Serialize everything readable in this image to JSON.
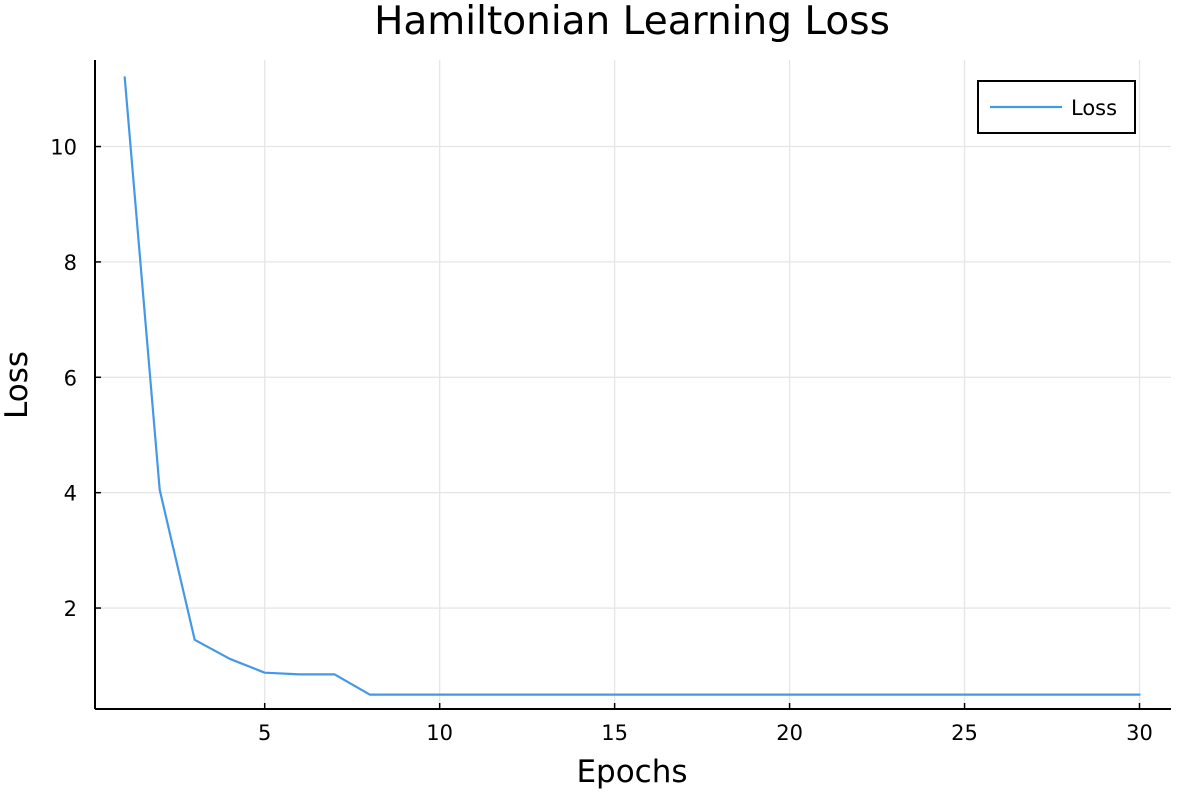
{
  "chart_data": {
    "type": "line",
    "title": "Hamiltonian Learning Loss",
    "xlabel": "Epochs",
    "ylabel": "Loss",
    "xlim": [
      0.15,
      30.9
    ],
    "ylim": [
      0.25,
      11.5
    ],
    "xticks": [
      5,
      10,
      15,
      20,
      25,
      30
    ],
    "yticks": [
      2,
      4,
      6,
      8,
      10
    ],
    "xtick_labels": [
      "5",
      "10",
      "15",
      "20",
      "25",
      "30"
    ],
    "ytick_labels": [
      "2",
      "4",
      "6",
      "8",
      "10"
    ],
    "grid": true,
    "legend_position": "top-right",
    "series": [
      {
        "name": "Loss",
        "color": "#4499e6",
        "x": [
          1,
          2,
          3,
          4,
          5,
          6,
          7,
          8,
          9,
          10,
          11,
          12,
          13,
          14,
          15,
          16,
          17,
          18,
          19,
          20,
          21,
          22,
          23,
          24,
          25,
          26,
          27,
          28,
          29,
          30
        ],
        "y": [
          11.2,
          4.05,
          1.45,
          1.12,
          0.88,
          0.85,
          0.85,
          0.5,
          0.5,
          0.5,
          0.5,
          0.5,
          0.5,
          0.5,
          0.5,
          0.5,
          0.5,
          0.5,
          0.5,
          0.5,
          0.5,
          0.5,
          0.5,
          0.5,
          0.5,
          0.5,
          0.5,
          0.5,
          0.5,
          0.5
        ]
      }
    ]
  }
}
